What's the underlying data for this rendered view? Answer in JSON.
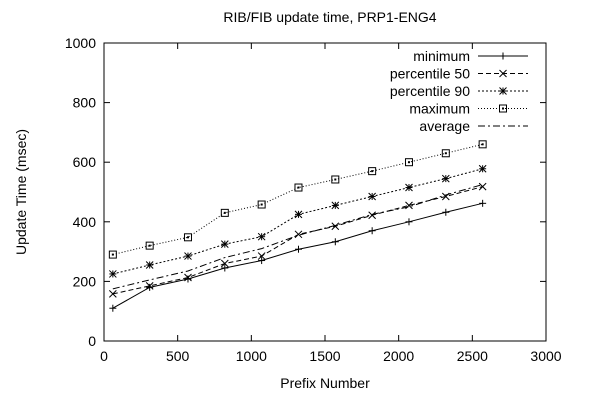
{
  "chart_data": {
    "type": "line",
    "title": "RIB/FIB update time, PRP1-ENG4",
    "xlabel": "Prefix Number",
    "ylabel": "Update Time (msec)",
    "xlim": [
      0,
      3000
    ],
    "ylim": [
      0,
      1000
    ],
    "xticks": [
      0,
      500,
      1000,
      1500,
      2000,
      2500,
      3000
    ],
    "yticks": [
      0,
      200,
      400,
      600,
      800,
      1000
    ],
    "grid": false,
    "legend_position": "top-right",
    "x": [
      60,
      310,
      570,
      820,
      1070,
      1320,
      1570,
      1820,
      2070,
      2320,
      2570
    ],
    "series": [
      {
        "name": "minimum",
        "marker": "plus",
        "dash": "solid",
        "values": [
          110,
          180,
          208,
          245,
          270,
          308,
          333,
          370,
          400,
          432,
          462
        ]
      },
      {
        "name": "percentile 50",
        "marker": "x",
        "dash": "dashed",
        "values": [
          158,
          185,
          213,
          260,
          285,
          358,
          385,
          422,
          455,
          485,
          518
        ]
      },
      {
        "name": "percentile 90",
        "marker": "star",
        "dash": "dotted",
        "values": [
          225,
          255,
          285,
          325,
          350,
          425,
          455,
          485,
          515,
          545,
          578
        ]
      },
      {
        "name": "maximum",
        "marker": "square",
        "dash": "fine-dotted",
        "values": [
          290,
          320,
          348,
          430,
          458,
          515,
          542,
          570,
          600,
          630,
          660
        ]
      },
      {
        "name": "average",
        "marker": "none",
        "dash": "dash-dot",
        "values": [
          175,
          205,
          235,
          280,
          310,
          355,
          388,
          425,
          450,
          490,
          525
        ]
      }
    ]
  }
}
